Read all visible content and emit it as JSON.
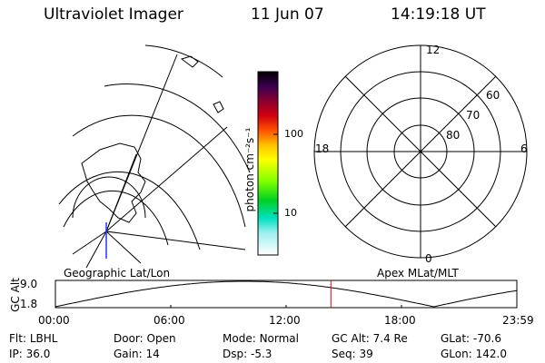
{
  "header": {
    "instrument": "Ultraviolet Imager",
    "date": "11 Jun 07",
    "time": "14:19:18 UT"
  },
  "colors": {
    "line": "#000000",
    "marker_red": "#e00000",
    "marker_blue": "#3030ff"
  },
  "geo_panel": {
    "label": "Geographic Lat/Lon"
  },
  "polar_panel": {
    "label": "Apex MLat/MLT",
    "mlt_labels": {
      "top": "12",
      "right": "6",
      "bottom": "0",
      "left": "18"
    },
    "lat_labels": [
      "60",
      "70",
      "80"
    ]
  },
  "colorbar": {
    "unit_label": "photon cm⁻²s⁻¹",
    "ticks": [
      "100",
      "10"
    ]
  },
  "timeline": {
    "axis_label": "GC Alt",
    "y_ticks": [
      "9.0",
      "1.8"
    ],
    "x_ticks": [
      "00:00",
      "06:00",
      "12:00",
      "18:00",
      "23:59"
    ],
    "current_time_fraction": 0.597
  },
  "info": {
    "row1": [
      {
        "key": "Flt:",
        "value": "LBHL"
      },
      {
        "key": "Door:",
        "value": "Open"
      },
      {
        "key": "Mode:",
        "value": "Normal"
      },
      {
        "key": "GC Alt:",
        "value": "7.4 Re"
      },
      {
        "key": "GLat:",
        "value": "-70.6"
      }
    ],
    "row2": [
      {
        "key": "IP:",
        "value": "36.0"
      },
      {
        "key": "Gain:",
        "value": "14"
      },
      {
        "key": "Dsp:",
        "value": "-5.3"
      },
      {
        "key": "Seq:",
        "value": "39"
      },
      {
        "key": "GLon:",
        "value": "142.0"
      }
    ]
  }
}
